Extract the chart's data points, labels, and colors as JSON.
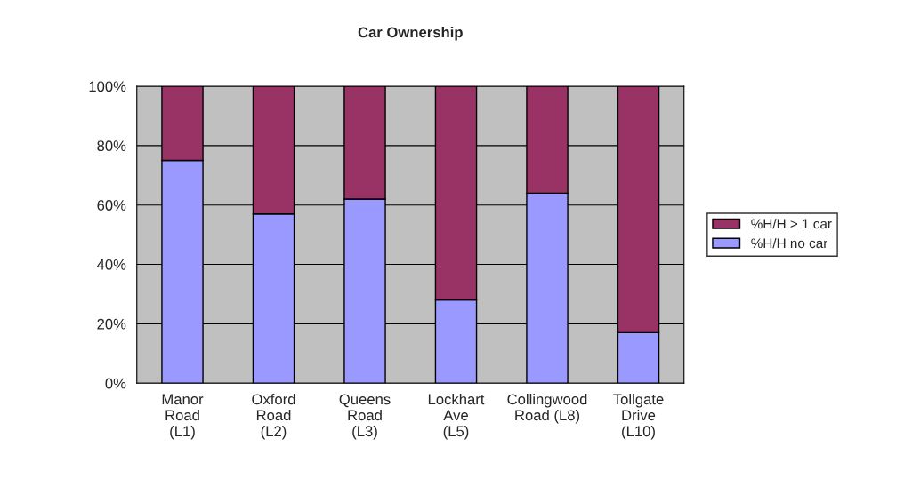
{
  "chart_data": {
    "type": "bar",
    "title": "Car Ownership",
    "stacked": true,
    "categories": [
      "Manor\nRoad\n(L1)",
      "Oxford\nRoad\n(L2)",
      "Queens\nRoad\n(L3)",
      "Lockhart\nAve\n(L5)",
      "Collingwood\nRoad (L8)",
      "Tollgate\nDrive\n(L10)"
    ],
    "series": [
      {
        "name": "%H/H no car",
        "color": "#9999ff",
        "values": [
          75,
          57,
          62,
          28,
          64,
          17
        ]
      },
      {
        "name": "%H/H > 1 car",
        "color": "#993366",
        "values": [
          25,
          43,
          38,
          72,
          36,
          83
        ]
      }
    ],
    "ylim": [
      0,
      100
    ],
    "yticks": [
      {
        "value": 0,
        "label": "0%"
      },
      {
        "value": 20,
        "label": "20%"
      },
      {
        "value": 40,
        "label": "40%"
      },
      {
        "value": 60,
        "label": "60%"
      },
      {
        "value": 80,
        "label": "80%"
      },
      {
        "value": 100,
        "label": "100%"
      }
    ],
    "grid": "y",
    "legend": "right"
  }
}
